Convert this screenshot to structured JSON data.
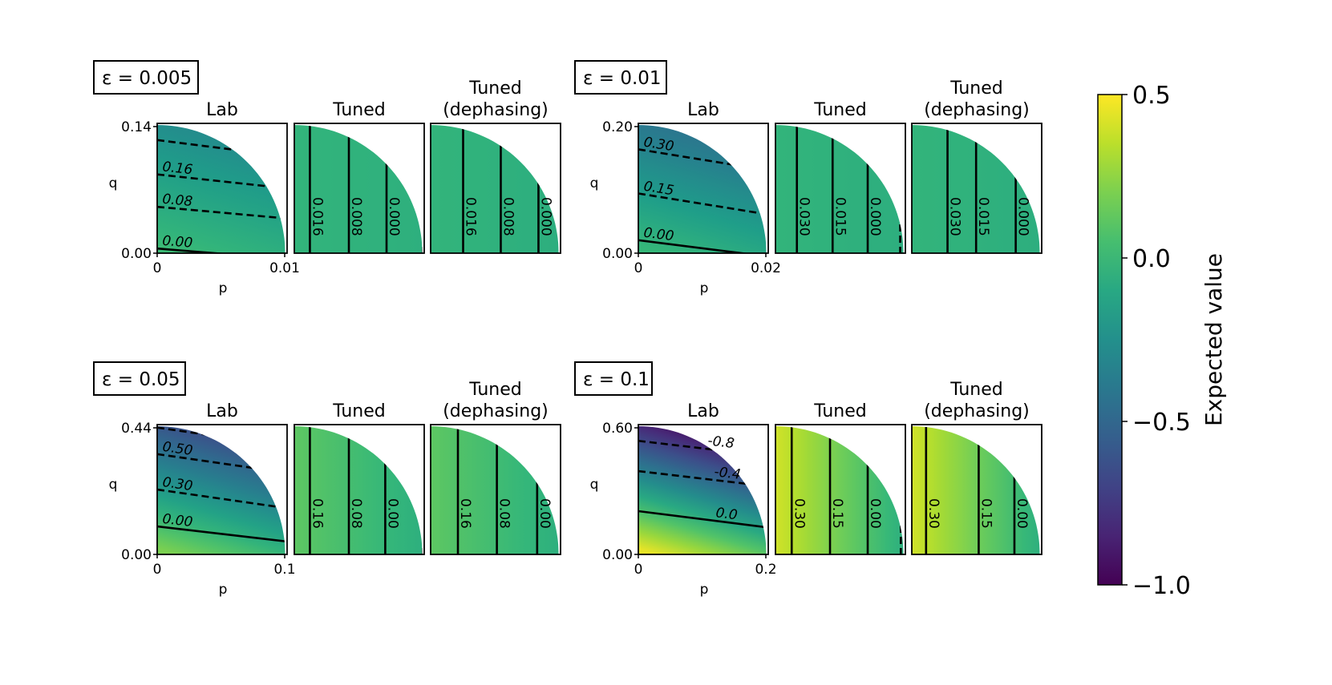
{
  "colorbar": {
    "label": "Expected value",
    "min": -1.0,
    "max": 0.5,
    "ticks": [
      "0.5",
      "0.0",
      "−0.5",
      "−1.0"
    ],
    "tick_values": [
      0.5,
      0.0,
      -0.5,
      -1.0
    ],
    "colormap": "viridis"
  },
  "chart_data": [
    {
      "type": "heatmap",
      "group_label": "ε = 0.005",
      "xlabel": "p",
      "ylabel": "q",
      "xlim": [
        0,
        0.01
      ],
      "ylim": [
        0,
        0.14
      ],
      "x_ticks": [
        "0",
        "0.01"
      ],
      "y_ticks": [
        "0.00",
        "0.14"
      ],
      "panels": [
        {
          "title": "Lab",
          "value_range": [
            -0.3,
            0.02
          ],
          "contours": [
            {
              "label": "0.00",
              "style": "solid",
              "q_at_p0": 0.005,
              "slope": -0.9
            },
            {
              "label": "0.08",
              "style": "dashed",
              "q_at_p0": 0.05,
              "slope": -1.0
            },
            {
              "label": "0.16",
              "style": "dashed",
              "q_at_p0": 0.085,
              "slope": -1.2
            },
            {
              "label": "",
              "style": "dashed",
              "q_at_p0": 0.122,
              "slope": -1.4
            }
          ]
        },
        {
          "title": "Tuned",
          "value_range": [
            -0.05,
            -0.02
          ],
          "contours": [
            {
              "label": "0.016",
              "style": "solid",
              "p": 0.0012
            },
            {
              "label": "0.008",
              "style": "solid",
              "p": 0.0042
            },
            {
              "label": "0.000",
              "style": "solid",
              "p": 0.0071
            },
            {
              "label": "",
              "style": "dashed",
              "p": 0.0099
            }
          ]
        },
        {
          "title": "Tuned\n(dephasing)",
          "value_range": [
            -0.06,
            -0.02
          ],
          "contours": [
            {
              "label": "0.016",
              "style": "solid",
              "p": 0.0025
            },
            {
              "label": "0.008",
              "style": "solid",
              "p": 0.0054
            },
            {
              "label": "0.000",
              "style": "solid",
              "p": 0.0083
            }
          ]
        }
      ]
    },
    {
      "type": "heatmap",
      "group_label": "ε = 0.01",
      "xlabel": "p",
      "ylabel": "q",
      "xlim": [
        0,
        0.02
      ],
      "ylim": [
        0,
        0.2
      ],
      "x_ticks": [
        "0",
        "0.02"
      ],
      "y_ticks": [
        "0.00",
        "0.20"
      ],
      "panels": [
        {
          "title": "Lab",
          "value_range": [
            -0.45,
            0.0
          ],
          "contours": [
            {
              "label": "0.00",
              "style": "solid",
              "q_at_p0": 0.02,
              "slope": -1.4
            },
            {
              "label": "0.15",
              "style": "dashed",
              "q_at_p0": 0.092,
              "slope": -1.8
            },
            {
              "label": "0.30",
              "style": "dashed",
              "q_at_p0": 0.16,
              "slope": -1.8
            }
          ]
        },
        {
          "title": "Tuned",
          "value_range": [
            -0.06,
            -0.02
          ],
          "contours": [
            {
              "label": "0.030",
              "style": "solid",
              "p": 0.0033
            },
            {
              "label": "0.015",
              "style": "solid",
              "p": 0.0088
            },
            {
              "label": "0.000",
              "style": "solid",
              "p": 0.0142
            },
            {
              "label": "",
              "style": "dashed",
              "p": 0.0192
            }
          ]
        },
        {
          "title": "Tuned\n(dephasing)",
          "value_range": [
            -0.06,
            -0.02
          ],
          "contours": [
            {
              "label": "0.030",
              "style": "solid",
              "p": 0.0055
            },
            {
              "label": "0.015",
              "style": "solid",
              "p": 0.0099
            },
            {
              "label": "0.000",
              "style": "solid",
              "p": 0.016
            }
          ]
        }
      ]
    },
    {
      "type": "heatmap",
      "group_label": "ε = 0.05",
      "xlabel": "p",
      "ylabel": "q",
      "xlim": [
        0,
        0.1
      ],
      "ylim": [
        0,
        0.44
      ],
      "x_ticks": [
        "0",
        "0.1"
      ],
      "y_ticks": [
        "0.00",
        "0.44"
      ],
      "panels": [
        {
          "title": "Lab",
          "value_range": [
            -0.7,
            0.2
          ],
          "contours": [
            {
              "label": "0.00",
              "style": "solid",
              "q_at_p0": 0.095,
              "slope": -1.3
            },
            {
              "label": "0.30",
              "style": "dashed",
              "q_at_p0": 0.22,
              "slope": -1.6
            },
            {
              "label": "0.50",
              "style": "dashed",
              "q_at_p0": 0.34,
              "slope": -1.6
            },
            {
              "label": "",
              "style": "dashed",
              "q_at_p0": 0.43,
              "slope": -1.6
            }
          ]
        },
        {
          "title": "Tuned",
          "value_range": [
            -0.05,
            0.12
          ],
          "contours": [
            {
              "label": "0.16",
              "style": "solid",
              "p": 0.012
            },
            {
              "label": "0.08",
              "style": "solid",
              "p": 0.042
            },
            {
              "label": "0.00",
              "style": "solid",
              "p": 0.07
            },
            {
              "label": "",
              "style": "dashed",
              "p": 0.099
            }
          ]
        },
        {
          "title": "Tuned\n(dephasing)",
          "value_range": [
            -0.05,
            0.12
          ],
          "contours": [
            {
              "label": "0.16",
              "style": "solid",
              "p": 0.021
            },
            {
              "label": "0.08",
              "style": "solid",
              "p": 0.051
            },
            {
              "label": "0.00",
              "style": "solid",
              "p": 0.082
            }
          ]
        }
      ]
    },
    {
      "type": "heatmap",
      "group_label": "ε = 0.1",
      "xlabel": "p",
      "ylabel": "q",
      "xlim": [
        0,
        0.2
      ],
      "ylim": [
        0,
        0.6
      ],
      "x_ticks": [
        "0",
        "0.2"
      ],
      "y_ticks": [
        "0.00",
        "0.60"
      ],
      "panels": [
        {
          "title": "Lab",
          "value_range": [
            -1.0,
            0.45
          ],
          "contours": [
            {
              "label": "0.0",
              "style": "solid",
              "q_at_p0": 0.2,
              "slope": -1.4
            },
            {
              "label": "-0.4",
              "style": "dashed",
              "q_at_p0": 0.385,
              "slope": -1.3
            },
            {
              "label": "-0.8",
              "style": "dashed",
              "q_at_p0": 0.525,
              "slope": -1.3
            }
          ]
        },
        {
          "title": "Tuned",
          "value_range": [
            -0.05,
            0.4
          ],
          "contours": [
            {
              "label": "0.30",
              "style": "solid",
              "p": 0.025
            },
            {
              "label": "0.15",
              "style": "solid",
              "p": 0.084
            },
            {
              "label": "0.00",
              "style": "solid",
              "p": 0.142
            },
            {
              "label": "",
              "style": "dashed",
              "p": 0.193
            }
          ]
        },
        {
          "title": "Tuned\n(dephasing)",
          "value_range": [
            -0.05,
            0.4
          ],
          "contours": [
            {
              "label": "0.30",
              "style": "solid",
              "p": 0.022
            },
            {
              "label": "0.15",
              "style": "solid",
              "p": 0.103
            },
            {
              "label": "0.00",
              "style": "solid",
              "p": 0.158
            }
          ]
        }
      ]
    }
  ]
}
